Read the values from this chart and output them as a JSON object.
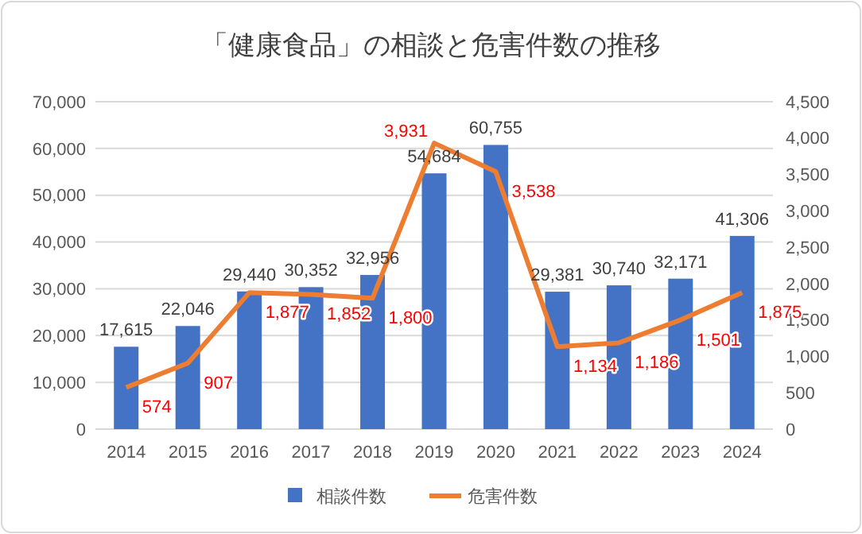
{
  "chart_data": {
    "type": "bar",
    "title": "「健康食品」の相談と危害件数の推移",
    "categories": [
      "2014",
      "2015",
      "2016",
      "2017",
      "2018",
      "2019",
      "2020",
      "2021",
      "2022",
      "2023",
      "2024"
    ],
    "series": [
      {
        "name": "相談件数",
        "color": "#4472c4",
        "values": [
          17615,
          22046,
          29440,
          30352,
          32956,
          54684,
          60755,
          29381,
          30740,
          32171,
          41306
        ],
        "value_labels": [
          "17,615",
          "22,046",
          "29,440",
          "30,352",
          "32,956",
          "54,684",
          "60,755",
          "29,381",
          "30,740",
          "32,171",
          "41,306"
        ]
      },
      {
        "name": "危害件数",
        "type": "line",
        "axis": "y2",
        "color": "#ed7d31",
        "values": [
          574,
          907,
          1877,
          1852,
          1800,
          3931,
          3538,
          1134,
          1186,
          1501,
          1875
        ],
        "value_labels": [
          "574",
          "907",
          "1,877",
          "1,852",
          "1,800",
          "3,931",
          "3,538",
          "1,134",
          "1,186",
          "1,501",
          "1,875"
        ]
      }
    ],
    "ylim": [
      0,
      70000
    ],
    "yticks": [
      {
        "value": 0,
        "label": "0"
      },
      {
        "value": 10000,
        "label": "10,000"
      },
      {
        "value": 20000,
        "label": "20,000"
      },
      {
        "value": 30000,
        "label": "30,000"
      },
      {
        "value": 40000,
        "label": "40,000"
      },
      {
        "value": 50000,
        "label": "50,000"
      },
      {
        "value": 60000,
        "label": "60,000"
      },
      {
        "value": 70000,
        "label": "70,000"
      }
    ],
    "y2lim": [
      0,
      4500
    ],
    "y2ticks": [
      {
        "value": 0,
        "label": "0"
      },
      {
        "value": 500,
        "label": "500"
      },
      {
        "value": 1000,
        "label": "1,000"
      },
      {
        "value": 1500,
        "label": "1,500"
      },
      {
        "value": 2000,
        "label": "2,000"
      },
      {
        "value": 2500,
        "label": "2,500"
      },
      {
        "value": 3000,
        "label": "3,000"
      },
      {
        "value": 3500,
        "label": "3,500"
      },
      {
        "value": 4000,
        "label": "4,000"
      },
      {
        "value": 4500,
        "label": "4,500"
      }
    ],
    "grid": "y",
    "legend": "bottom",
    "marker": "none",
    "line_style": "solid"
  }
}
